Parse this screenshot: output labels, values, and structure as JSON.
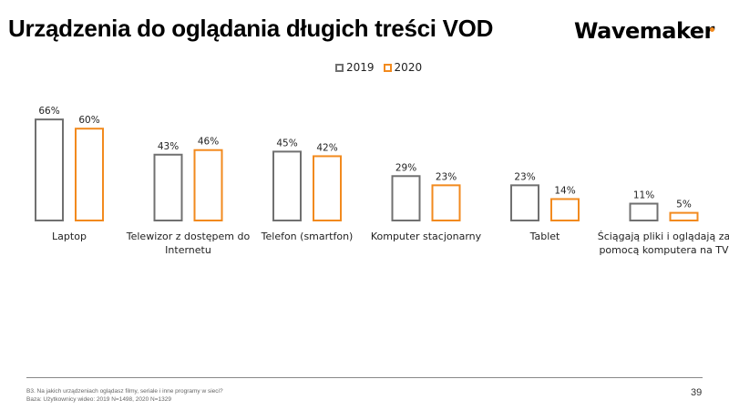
{
  "header": {
    "title": "Urządzenia do oglądania długich treści VOD",
    "logo": "Wavemaker"
  },
  "colors": {
    "series_2019": "#707070",
    "series_2020": "#f28a1e",
    "logo_dot": "#f28a1e"
  },
  "chart_data": {
    "type": "bar",
    "title": "Urządzenia do oglądania długich treści VOD",
    "xlabel": "",
    "ylabel": "",
    "ylim": [
      0,
      70
    ],
    "grid": false,
    "legend_position": "top-center",
    "categories": [
      [
        "Laptop"
      ],
      [
        "Telewizor z dostępem do",
        "Internetu"
      ],
      [
        "Telefon (smartfon)"
      ],
      [
        "Komputer stacjonarny"
      ],
      [
        "Tablet"
      ],
      [
        "Ściągają pliki i oglądają za",
        "pomocą komputera na TV"
      ]
    ],
    "series": [
      {
        "name": "2019",
        "values": [
          66,
          43,
          45,
          29,
          23,
          11
        ],
        "labels": [
          "66%",
          "43%",
          "45%",
          "29%",
          "23%",
          "11%"
        ]
      },
      {
        "name": "2020",
        "values": [
          60,
          46,
          42,
          23,
          14,
          5
        ],
        "labels": [
          "60%",
          "46%",
          "42%",
          "23%",
          "14%",
          "5%"
        ]
      }
    ]
  },
  "legend": [
    {
      "label": "2019"
    },
    {
      "label": "2020"
    }
  ],
  "footer": {
    "question": "B3. Na jakich urządzeniach oglądasz filmy, seriale i inne programy w sieci?",
    "base": "Baza: Użytkownicy wideo: 2019 N=1498, 2020 N=1329",
    "page_number": "39"
  }
}
